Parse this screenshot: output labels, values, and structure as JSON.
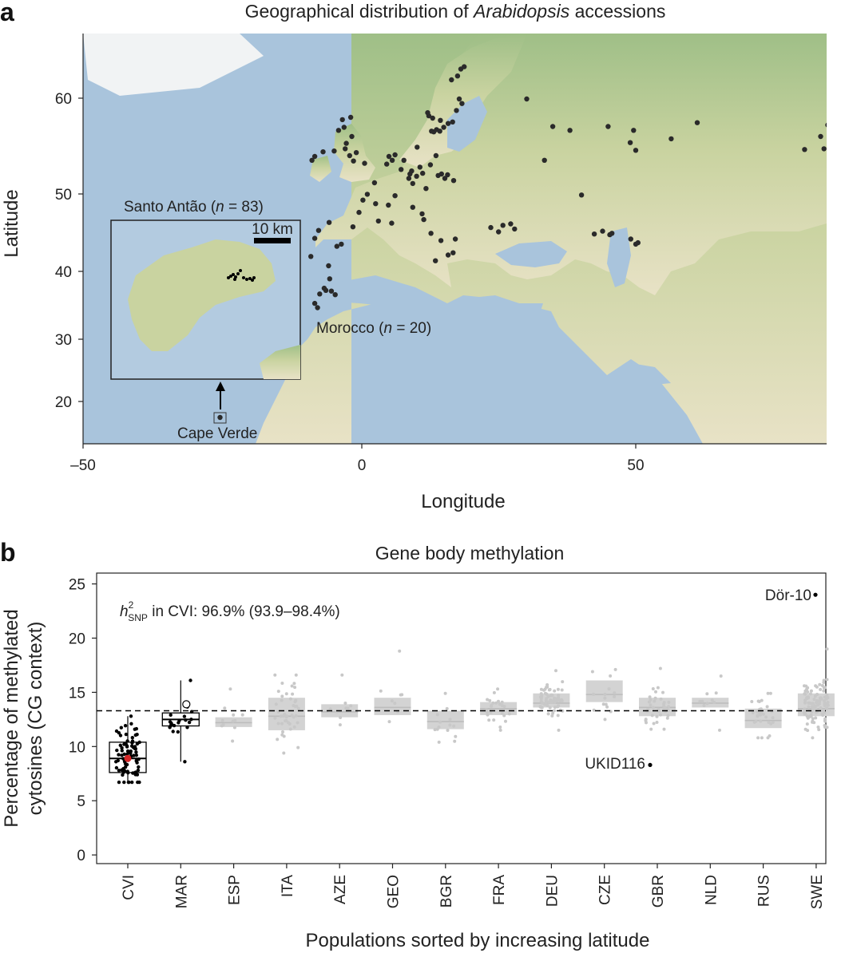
{
  "colors": {
    "sea": "#a9c4dc",
    "land_south": "#e8e2c6",
    "land_mid": "#c9d3a0",
    "land_north": "#9fbf87",
    "forest": "#7fa86e",
    "ice": "#f1f3f4",
    "point": "#2a2a2a",
    "cvi_box": "#000000",
    "gray_box": "#d3d3d3",
    "gray_point": "#c8c8c8",
    "highlight_red": "#d62728"
  },
  "panel_a": {
    "letter": "a",
    "title_prefix": "Geographical distribution of ",
    "title_italic": "Arabidopsis",
    "title_suffix": " accessions",
    "xlabel": "Longitude",
    "ylabel": "Latitude",
    "x_ticks": [
      "–50",
      "0",
      "50"
    ],
    "y_ticks": [
      "60",
      "50",
      "40",
      "30",
      "20"
    ],
    "inset": {
      "label_prefix": "Santo Antão (",
      "label_n": "n",
      "label_suffix": " = 83)",
      "scalebar": "10 km"
    },
    "morocco_prefix": "Morocco (",
    "morocco_n": "n",
    "morocco_suffix": " = 20)",
    "cape_verde": "Cape Verde"
  },
  "panel_b": {
    "letter": "b",
    "title": "Gene body methylation",
    "xlabel": "Populations sorted by increasing latitude",
    "ylabel_line1": "Percentage of methylated",
    "ylabel_line2": "cytosines (CG context)",
    "heritability_h": "h",
    "heritability_sup": "2",
    "heritability_sub": "SNP",
    "heritability_text": " in CVI: 96.9% (93.9–98.4%)",
    "outlier_high": "Dör-10",
    "outlier_low": "UKID116"
  },
  "chart_data": [
    {
      "type": "scatter",
      "title": "Geographical distribution of Arabidopsis accessions",
      "xlabel": "Longitude",
      "ylabel": "Latitude",
      "xlim": [
        -50,
        85
      ],
      "ylim": [
        15,
        68
      ],
      "x_ticks": [
        -50,
        0,
        50
      ],
      "y_ticks": [
        20,
        30,
        40,
        50,
        60
      ],
      "points": [
        [
          -24.9,
          17.3
        ],
        [
          -9.2,
          38.7
        ],
        [
          -8.5,
          41.2
        ],
        [
          -6.0,
          37.4
        ],
        [
          -4.5,
          40.1
        ],
        [
          -3.7,
          40.4
        ],
        [
          -5.9,
          43.4
        ],
        [
          -1.6,
          42.8
        ],
        [
          -7.8,
          42.3
        ],
        [
          -6.5,
          34.0
        ],
        [
          -5.8,
          35.6
        ],
        [
          -7.6,
          33.5
        ],
        [
          -8.0,
          31.6
        ],
        [
          -5.5,
          33.9
        ],
        [
          -6.8,
          34.3
        ],
        [
          -8.5,
          32.2
        ],
        [
          -4.8,
          33.4
        ],
        [
          -3.0,
          53.4
        ],
        [
          -2.2,
          52.5
        ],
        [
          -1.5,
          51.8
        ],
        [
          -4.2,
          55.8
        ],
        [
          -3.2,
          56.2
        ],
        [
          -2.8,
          54.1
        ],
        [
          -1.0,
          52.9
        ],
        [
          0.5,
          51.5
        ],
        [
          -1.8,
          55.0
        ],
        [
          -3.5,
          57.2
        ],
        [
          -2.0,
          57.5
        ],
        [
          -5.0,
          53.1
        ],
        [
          -8.5,
          52.4
        ],
        [
          -7.0,
          53.0
        ],
        [
          -9.0,
          51.9
        ],
        [
          2.3,
          48.9
        ],
        [
          1.0,
          47.3
        ],
        [
          4.8,
          45.8
        ],
        [
          3.0,
          43.6
        ],
        [
          -0.5,
          44.8
        ],
        [
          5.4,
          43.3
        ],
        [
          2.5,
          46.0
        ],
        [
          0.2,
          46.5
        ],
        [
          6.0,
          47.1
        ],
        [
          4.9,
          52.4
        ],
        [
          5.5,
          51.9
        ],
        [
          6.0,
          52.6
        ],
        [
          4.5,
          51.4
        ],
        [
          8.7,
          50.1
        ],
        [
          9.9,
          49.8
        ],
        [
          11.6,
          48.1
        ],
        [
          13.4,
          52.5
        ],
        [
          10.0,
          53.6
        ],
        [
          7.1,
          50.7
        ],
        [
          9.2,
          48.8
        ],
        [
          12.4,
          51.3
        ],
        [
          8.5,
          49.5
        ],
        [
          10.5,
          51.0
        ],
        [
          11.0,
          50.2
        ],
        [
          7.6,
          51.9
        ],
        [
          9.0,
          50.5
        ],
        [
          14.4,
          50.1
        ],
        [
          16.6,
          49.2
        ],
        [
          15.0,
          49.5
        ],
        [
          13.8,
          49.9
        ],
        [
          15.5,
          50.0
        ],
        [
          12.5,
          41.9
        ],
        [
          11.2,
          43.8
        ],
        [
          14.3,
          40.9
        ],
        [
          16.9,
          41.1
        ],
        [
          9.2,
          45.5
        ],
        [
          10.9,
          44.6
        ],
        [
          15.6,
          38.9
        ],
        [
          13.3,
          38.1
        ],
        [
          16.5,
          39.2
        ],
        [
          12.6,
          55.7
        ],
        [
          13.0,
          55.6
        ],
        [
          13.5,
          55.9
        ],
        [
          14.1,
          55.7
        ],
        [
          14.8,
          56.2
        ],
        [
          15.6,
          56.7
        ],
        [
          16.4,
          56.9
        ],
        [
          17.1,
          58.4
        ],
        [
          17.6,
          59.9
        ],
        [
          18.1,
          59.3
        ],
        [
          16.2,
          62.4
        ],
        [
          17.3,
          62.9
        ],
        [
          17.9,
          63.8
        ],
        [
          18.5,
          64.1
        ],
        [
          12.1,
          57.7
        ],
        [
          11.9,
          58.1
        ],
        [
          12.8,
          57.4
        ],
        [
          14.2,
          57.1
        ],
        [
          23.3,
          42.7
        ],
        [
          24.7,
          42.1
        ],
        [
          25.5,
          43.0
        ],
        [
          26.9,
          43.2
        ],
        [
          27.6,
          42.5
        ],
        [
          34.5,
          56.3
        ],
        [
          37.6,
          55.8
        ],
        [
          39.7,
          47.2
        ],
        [
          44.5,
          56.3
        ],
        [
          49.1,
          55.8
        ],
        [
          55.9,
          54.7
        ],
        [
          60.6,
          56.8
        ],
        [
          49.5,
          53.2
        ],
        [
          48.5,
          54.2
        ],
        [
          29.8,
          59.9
        ],
        [
          33.0,
          51.9
        ],
        [
          44.8,
          41.7
        ],
        [
          43.5,
          42.2
        ],
        [
          45.2,
          41.9
        ],
        [
          42.0,
          41.8
        ],
        [
          49.5,
          40.4
        ],
        [
          48.6,
          41.1
        ],
        [
          49.9,
          40.6
        ],
        [
          80.0,
          53.3
        ],
        [
          82.9,
          55.0
        ],
        [
          84.2,
          56.5
        ],
        [
          83.5,
          53.4
        ],
        [
          85.0,
          52.5
        ]
      ]
    },
    {
      "type": "box",
      "title": "Gene body methylation",
      "xlabel": "Populations sorted by increasing latitude",
      "ylabel": "Percentage of methylated cytosines (CG context)",
      "ylim": [
        -0.8,
        26
      ],
      "y_ticks": [
        0,
        5,
        10,
        15,
        20,
        25
      ],
      "reference_line": 13.3,
      "categories": [
        "CVI",
        "MAR",
        "ESP",
        "ITA",
        "AZE",
        "GEO",
        "BGR",
        "FRA",
        "DEU",
        "CZE",
        "GBR",
        "NLD",
        "RUS",
        "SWE"
      ],
      "boxes": [
        {
          "name": "CVI",
          "q1": 7.6,
          "median": 8.9,
          "q3": 10.4,
          "min": 6.7,
          "max": 12.8,
          "n": 83,
          "highlight": "black"
        },
        {
          "name": "MAR",
          "q1": 11.9,
          "median": 12.5,
          "q3": 13.1,
          "min": 8.6,
          "max": 16.1,
          "n": 20,
          "highlight": "black"
        },
        {
          "name": "ESP",
          "q1": 11.8,
          "median": 12.2,
          "q3": 12.7,
          "min": 10.5,
          "max": 15.3,
          "n": 12
        },
        {
          "name": "ITA",
          "q1": 11.5,
          "median": 12.8,
          "q3": 14.5,
          "min": 9.4,
          "max": 16.6,
          "n": 45
        },
        {
          "name": "AZE",
          "q1": 12.7,
          "median": 13.2,
          "q3": 13.9,
          "min": 12.0,
          "max": 16.6,
          "n": 10
        },
        {
          "name": "GEO",
          "q1": 12.9,
          "median": 13.6,
          "q3": 14.5,
          "min": 12.3,
          "max": 18.8,
          "n": 8
        },
        {
          "name": "BGR",
          "q1": 11.6,
          "median": 12.3,
          "q3": 13.3,
          "min": 10.4,
          "max": 14.9,
          "n": 14
        },
        {
          "name": "FRA",
          "q1": 12.9,
          "median": 13.5,
          "q3": 14.1,
          "min": 11.5,
          "max": 15.3,
          "n": 25
        },
        {
          "name": "DEU",
          "q1": 13.6,
          "median": 14.0,
          "q3": 14.9,
          "min": 11.5,
          "max": 17.0,
          "n": 70
        },
        {
          "name": "CZE",
          "q1": 14.1,
          "median": 14.8,
          "q3": 16.1,
          "min": 12.5,
          "max": 17.1,
          "n": 15
        },
        {
          "name": "GBR",
          "q1": 12.8,
          "median": 13.6,
          "q3": 14.5,
          "min": 11.6,
          "max": 17.2,
          "n": 40
        },
        {
          "name": "NLD",
          "q1": 13.6,
          "median": 14.0,
          "q3": 14.5,
          "min": 11.5,
          "max": 16.5,
          "n": 10
        },
        {
          "name": "RUS",
          "q1": 11.7,
          "median": 12.4,
          "q3": 13.5,
          "min": 10.8,
          "max": 14.9,
          "n": 30
        },
        {
          "name": "SWE",
          "q1": 12.8,
          "median": 13.5,
          "q3": 14.9,
          "min": 10.8,
          "max": 19.0,
          "n": 120
        }
      ],
      "outliers": [
        {
          "label": "Dör-10",
          "category": "SWE",
          "y": 24.0
        },
        {
          "label": "UKID116",
          "category": "BGR",
          "y": 8.3
        }
      ],
      "highlight_points": [
        {
          "category": "CVI",
          "y": 8.9,
          "color": "red"
        },
        {
          "category": "MAR",
          "y": 13.9,
          "color": "open"
        }
      ]
    }
  ]
}
